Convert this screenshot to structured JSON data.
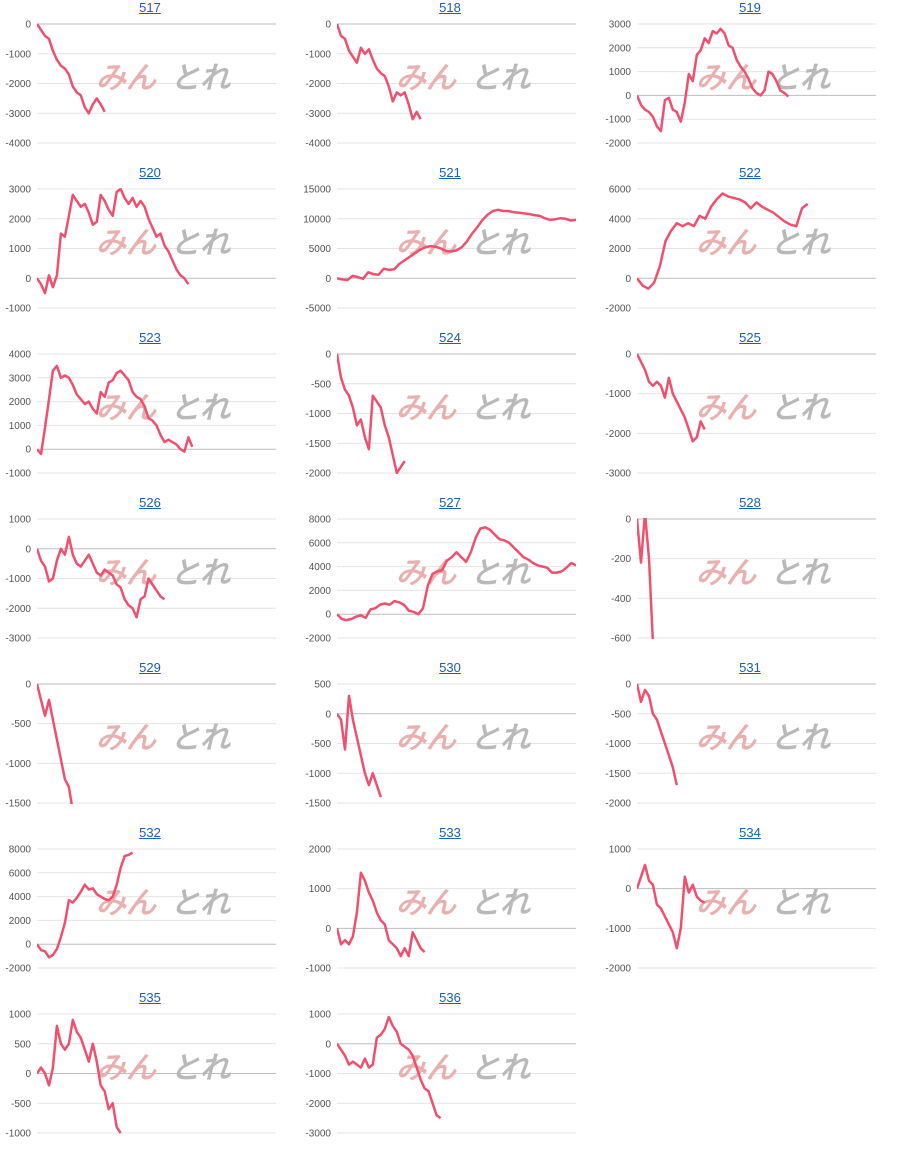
{
  "colors": {
    "line": "#f0506e",
    "link": "#1a5fb4"
  },
  "watermark": {
    "part1": "みん",
    "part2": "とれ"
  },
  "chart_data": [
    {
      "type": "line",
      "title": "517",
      "ylim": [
        -4000,
        0
      ],
      "yticks": [
        0,
        -1000,
        -2000,
        -3000,
        -4000
      ],
      "n": 60,
      "values": [
        0,
        -200,
        -400,
        -500,
        -900,
        -1200,
        -1400,
        -1500,
        -1700,
        -2100,
        -2300,
        -2400,
        -2800,
        -3000,
        -2700,
        -2500,
        -2700,
        -2950
      ]
    },
    {
      "type": "line",
      "title": "518",
      "ylim": [
        -4000,
        0
      ],
      "yticks": [
        0,
        -1000,
        -2000,
        -3000,
        -4000
      ],
      "n": 60,
      "values": [
        0,
        -400,
        -500,
        -900,
        -1100,
        -1300,
        -800,
        -1000,
        -850,
        -1200,
        -1500,
        -1650,
        -1750,
        -2100,
        -2600,
        -2300,
        -2400,
        -2300,
        -2700,
        -3200,
        -2950,
        -3200
      ]
    },
    {
      "type": "line",
      "title": "519",
      "ylim": [
        -2000,
        3000
      ],
      "yticks": [
        3000,
        2000,
        1000,
        0,
        -1000,
        -2000
      ],
      "n": 60,
      "values": [
        0,
        -400,
        -600,
        -700,
        -900,
        -1300,
        -1500,
        -200,
        -100,
        -600,
        -700,
        -1100,
        -300,
        900,
        600,
        1700,
        1900,
        2400,
        2200,
        2700,
        2600,
        2800,
        2600,
        2100,
        2000,
        1500,
        1200,
        1000,
        700,
        300,
        100,
        0,
        200,
        1000,
        900,
        600,
        200,
        100,
        -50
      ]
    },
    {
      "type": "line",
      "title": "520",
      "ylim": [
        -1000,
        3000
      ],
      "yticks": [
        3000,
        2000,
        1000,
        0,
        -1000
      ],
      "n": 60,
      "values": [
        0,
        -200,
        -500,
        100,
        -300,
        100,
        1500,
        1400,
        2100,
        2800,
        2600,
        2400,
        2500,
        2200,
        1800,
        1900,
        2800,
        2600,
        2300,
        2100,
        2900,
        3000,
        2700,
        2500,
        2700,
        2400,
        2600,
        2400,
        2000,
        1700,
        1400,
        1500,
        1100,
        900,
        600,
        300,
        100,
        0,
        -200
      ]
    },
    {
      "type": "line",
      "title": "521",
      "ylim": [
        -5000,
        15000
      ],
      "yticks": [
        15000,
        10000,
        5000,
        0,
        -5000
      ],
      "n": 46,
      "values": [
        0,
        -200,
        -300,
        400,
        200,
        -100,
        1000,
        700,
        600,
        1600,
        1400,
        1500,
        2400,
        3000,
        3600,
        4200,
        4800,
        5200,
        5400,
        5300,
        5000,
        4600,
        4500,
        4700,
        5200,
        6200,
        7500,
        8600,
        9800,
        10700,
        11300,
        11500,
        11300,
        11300,
        11100,
        11000,
        10900,
        10800,
        10600,
        10500,
        10100,
        9800,
        9900,
        10100,
        10000,
        9700,
        9800,
        10200,
        10400,
        10300
      ]
    },
    {
      "type": "line",
      "title": "522",
      "ylim": [
        -2000,
        6000
      ],
      "yticks": [
        6000,
        4000,
        2000,
        0,
        -2000
      ],
      "n": 42,
      "values": [
        0,
        -500,
        -700,
        -300,
        800,
        2500,
        3200,
        3700,
        3500,
        3700,
        3500,
        4200,
        4000,
        4800,
        5300,
        5700,
        5500,
        5400,
        5300,
        5100,
        4700,
        5100,
        4800,
        4600,
        4400,
        4100,
        3800,
        3600,
        3500,
        4700,
        5000
      ]
    },
    {
      "type": "line",
      "title": "523",
      "ylim": [
        -1000,
        4000
      ],
      "yticks": [
        4000,
        3000,
        2000,
        1000,
        0,
        -1000
      ],
      "n": 60,
      "values": [
        0,
        -200,
        900,
        2100,
        3300,
        3500,
        3000,
        3100,
        3000,
        2700,
        2300,
        2100,
        1900,
        2000,
        1700,
        1500,
        2400,
        2200,
        2800,
        2900,
        3200,
        3300,
        3100,
        2900,
        2400,
        2200,
        2100,
        1800,
        1300,
        1200,
        1000,
        600,
        300,
        400,
        300,
        200,
        0,
        -100,
        500,
        100
      ]
    },
    {
      "type": "line",
      "title": "524",
      "ylim": [
        -2000,
        0
      ],
      "yticks": [
        0,
        -500,
        -1000,
        -1500,
        -2000
      ],
      "n": 60,
      "values": [
        0,
        -400,
        -600,
        -700,
        -900,
        -1200,
        -1100,
        -1400,
        -1600,
        -700,
        -800,
        -900,
        -1200,
        -1400,
        -1700,
        -2000,
        -1900,
        -1800
      ]
    },
    {
      "type": "line",
      "title": "525",
      "ylim": [
        -3000,
        0
      ],
      "yticks": [
        0,
        -1000,
        -2000,
        -3000
      ],
      "n": 60,
      "values": [
        0,
        -200,
        -400,
        -700,
        -800,
        -700,
        -800,
        -1100,
        -600,
        -1000,
        -1200,
        -1400,
        -1600,
        -1900,
        -2200,
        -2100,
        -1700,
        -1900
      ]
    },
    {
      "type": "line",
      "title": "526",
      "ylim": [
        -3000,
        1000
      ],
      "yticks": [
        1000,
        0,
        -1000,
        -2000,
        -3000
      ],
      "n": 60,
      "values": [
        0,
        -400,
        -600,
        -1100,
        -1000,
        -400,
        0,
        -200,
        400,
        -200,
        -500,
        -600,
        -400,
        -200,
        -500,
        -800,
        -900,
        -700,
        -800,
        -900,
        -1200,
        -1300,
        -1700,
        -1900,
        -2000,
        -2300,
        -1700,
        -1600,
        -1000,
        -1200,
        -1400,
        -1600,
        -1700
      ]
    },
    {
      "type": "line",
      "title": "527",
      "ylim": [
        -2000,
        8000
      ],
      "yticks": [
        8000,
        6000,
        4000,
        2000,
        0,
        -2000
      ],
      "n": 50,
      "values": [
        0,
        -400,
        -500,
        -400,
        -200,
        -100,
        -300,
        400,
        500,
        800,
        900,
        800,
        1100,
        1000,
        800,
        300,
        200,
        0,
        500,
        2400,
        3400,
        3600,
        3700,
        4500,
        4800,
        5200,
        4800,
        4400,
        5200,
        6400,
        7200,
        7300,
        7100,
        6700,
        6300,
        6200,
        6000,
        5600,
        5200,
        4800,
        4600,
        4300,
        4100,
        4000,
        3900,
        3500,
        3500,
        3600,
        3900,
        4300,
        4100
      ]
    },
    {
      "type": "line",
      "title": "528",
      "ylim": [
        -600,
        0
      ],
      "yticks": [
        0,
        -200,
        -400,
        -600
      ],
      "n": 60,
      "values": [
        0,
        -220,
        30,
        -200,
        -620
      ]
    },
    {
      "type": "line",
      "title": "529",
      "ylim": [
        -1500,
        0
      ],
      "yticks": [
        0,
        -500,
        -1000,
        -1500
      ],
      "n": 60,
      "values": [
        0,
        -200,
        -400,
        -200,
        -450,
        -700,
        -950,
        -1200,
        -1300,
        -1600
      ]
    },
    {
      "type": "line",
      "title": "530",
      "ylim": [
        -1500,
        500
      ],
      "yticks": [
        500,
        0,
        -500,
        -1000,
        -1500
      ],
      "n": 60,
      "values": [
        0,
        -100,
        -600,
        300,
        -100,
        -400,
        -700,
        -1000,
        -1200,
        -1000,
        -1200,
        -1400
      ]
    },
    {
      "type": "line",
      "title": "531",
      "ylim": [
        -2000,
        0
      ],
      "yticks": [
        0,
        -500,
        -1000,
        -1500,
        -2000
      ],
      "n": 60,
      "values": [
        0,
        -300,
        -100,
        -200,
        -500,
        -600,
        -800,
        -1000,
        -1200,
        -1400,
        -1700
      ]
    },
    {
      "type": "line",
      "title": "532",
      "ylim": [
        -2000,
        8000
      ],
      "yticks": [
        8000,
        6000,
        4000,
        2000,
        0,
        -2000
      ],
      "n": 60,
      "values": [
        0,
        -500,
        -600,
        -1100,
        -900,
        -400,
        600,
        1800,
        3700,
        3500,
        3900,
        4400,
        5000,
        4600,
        4700,
        4200,
        4000,
        3800,
        3700,
        4000,
        5000,
        6400,
        7400,
        7500,
        7700
      ]
    },
    {
      "type": "line",
      "title": "533",
      "ylim": [
        -1000,
        2000
      ],
      "yticks": [
        2000,
        1000,
        0,
        -1000
      ],
      "n": 60,
      "values": [
        0,
        -400,
        -300,
        -400,
        -200,
        400,
        1400,
        1200,
        900,
        700,
        400,
        200,
        100,
        -300,
        -400,
        -500,
        -700,
        -500,
        -700,
        -100,
        -300,
        -500,
        -600
      ]
    },
    {
      "type": "line",
      "title": "534",
      "ylim": [
        -2000,
        1000
      ],
      "yticks": [
        1000,
        0,
        -1000,
        -2000
      ],
      "n": 60,
      "values": [
        0,
        300,
        600,
        200,
        100,
        -400,
        -500,
        -700,
        -900,
        -1100,
        -1500,
        -1000,
        300,
        -100,
        100,
        -200,
        -300,
        -350
      ]
    },
    {
      "type": "line",
      "title": "535",
      "ylim": [
        -1000,
        1000
      ],
      "yticks": [
        1000,
        500,
        0,
        -500,
        -1000
      ],
      "n": 60,
      "values": [
        0,
        100,
        0,
        -200,
        100,
        800,
        500,
        400,
        500,
        900,
        700,
        600,
        400,
        200,
        500,
        200,
        -200,
        -300,
        -600,
        -500,
        -900,
        -1000
      ]
    },
    {
      "type": "line",
      "title": "536",
      "ylim": [
        -3000,
        1000
      ],
      "yticks": [
        1000,
        0,
        -1000,
        -2000,
        -3000
      ],
      "n": 60,
      "values": [
        0,
        -200,
        -400,
        -700,
        -600,
        -700,
        -800,
        -500,
        -800,
        -700,
        200,
        300,
        500,
        900,
        600,
        400,
        0,
        -100,
        -200,
        -400,
        -800,
        -1200,
        -1500,
        -1600,
        -2000,
        -2400,
        -2500
      ]
    }
  ]
}
